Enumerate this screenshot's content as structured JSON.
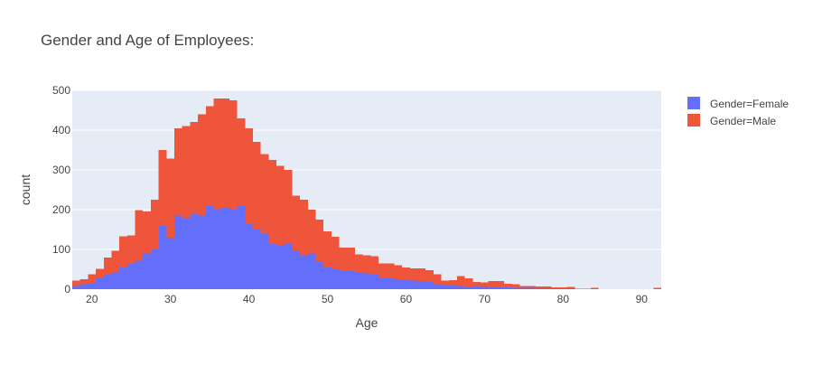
{
  "chart_data": {
    "type": "bar",
    "barmode": "stack",
    "title": "Gender and Age of Employees:",
    "xlabel": "Age",
    "ylabel": "count",
    "xlim": [
      17.5,
      92.5
    ],
    "ylim": [
      0,
      500
    ],
    "xticks": [
      20,
      30,
      40,
      50,
      60,
      70,
      80,
      90
    ],
    "yticks": [
      0,
      100,
      200,
      300,
      400,
      500
    ],
    "bin_width": 1,
    "grid": true,
    "legend_position": "top-right",
    "x": [
      18,
      19,
      20,
      21,
      22,
      23,
      24,
      25,
      26,
      27,
      28,
      29,
      30,
      31,
      32,
      33,
      34,
      35,
      36,
      37,
      38,
      39,
      40,
      41,
      42,
      43,
      44,
      45,
      46,
      47,
      48,
      49,
      50,
      51,
      52,
      53,
      54,
      55,
      56,
      57,
      58,
      59,
      60,
      61,
      62,
      63,
      64,
      65,
      66,
      67,
      68,
      69,
      70,
      71,
      72,
      73,
      74,
      75,
      76,
      77,
      78,
      79,
      80,
      81,
      82,
      83,
      84,
      85,
      86,
      87,
      88,
      89,
      90,
      91,
      92
    ],
    "series": [
      {
        "name": "Gender=Female",
        "color": "#636efa",
        "values": [
          8,
          12,
          15,
          28,
          38,
          42,
          55,
          65,
          72,
          90,
          100,
          160,
          130,
          185,
          180,
          190,
          185,
          210,
          200,
          205,
          200,
          210,
          165,
          150,
          140,
          115,
          110,
          115,
          95,
          85,
          90,
          70,
          55,
          52,
          45,
          45,
          42,
          40,
          38,
          30,
          28,
          25,
          25,
          22,
          20,
          18,
          12,
          10,
          10,
          8,
          7,
          8,
          7,
          5,
          5,
          4,
          3,
          3,
          3,
          2,
          2,
          2,
          1,
          2,
          0,
          0,
          1,
          0,
          0,
          0,
          0,
          0,
          0,
          0,
          1
        ]
      },
      {
        "name": "Gender=Male",
        "color": "#ef553b",
        "values": [
          14,
          13,
          22,
          23,
          42,
          55,
          78,
          70,
          127,
          105,
          125,
          190,
          198,
          220,
          230,
          230,
          255,
          250,
          280,
          275,
          275,
          220,
          240,
          220,
          200,
          210,
          200,
          185,
          140,
          140,
          110,
          105,
          90,
          80,
          60,
          60,
          45,
          45,
          45,
          35,
          37,
          35,
          30,
          30,
          32,
          30,
          25,
          12,
          13,
          25,
          20,
          10,
          10,
          15,
          15,
          10,
          10,
          5,
          5,
          5,
          5,
          3,
          3,
          4,
          1,
          1,
          2,
          0,
          0,
          0,
          0,
          0,
          0,
          0,
          2
        ]
      }
    ]
  }
}
